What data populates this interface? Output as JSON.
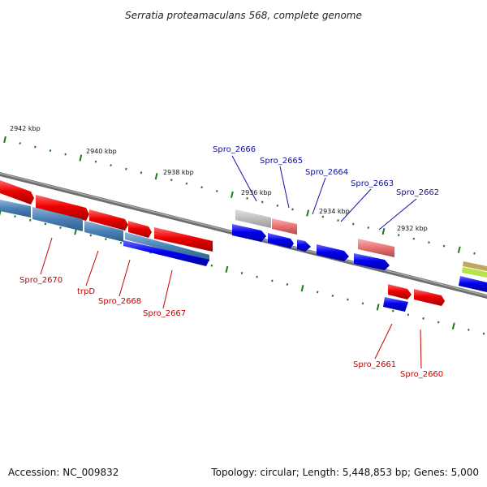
{
  "title": "Serratia proteamaculans 568, complete genome",
  "footer": {
    "accession": "Accession: NC_009832",
    "summary": "Topology: circular; Length: 5,448,853 bp; Genes: 5,000"
  },
  "ticks": [
    {
      "label": "2942 kbp"
    },
    {
      "label": "2940 kbp"
    },
    {
      "label": "2938 kbp"
    },
    {
      "label": "2936 kbp"
    },
    {
      "label": "2934 kbp"
    },
    {
      "label": "2932 kbp"
    }
  ],
  "gene_labels_top": [
    "Spro_2666",
    "Spro_2665",
    "Spro_2664",
    "Spro_2663",
    "Spro_2662"
  ],
  "gene_labels_bottom": [
    "Spro_2670",
    "trpD",
    "Spro_2668",
    "Spro_2667",
    "Spro_2661",
    "Spro_2660"
  ],
  "colors": {
    "backbone": "#8a8a8a",
    "tick": "#1a7a1a",
    "forward_gene": "#e00000",
    "reverse_gene": "#0000e0",
    "operon": "#4f86b8",
    "pseudogene": "#c0c0c0",
    "faded_gene": "#e87878",
    "top_label": "#1010a8",
    "bottom_label": "#c80000"
  }
}
